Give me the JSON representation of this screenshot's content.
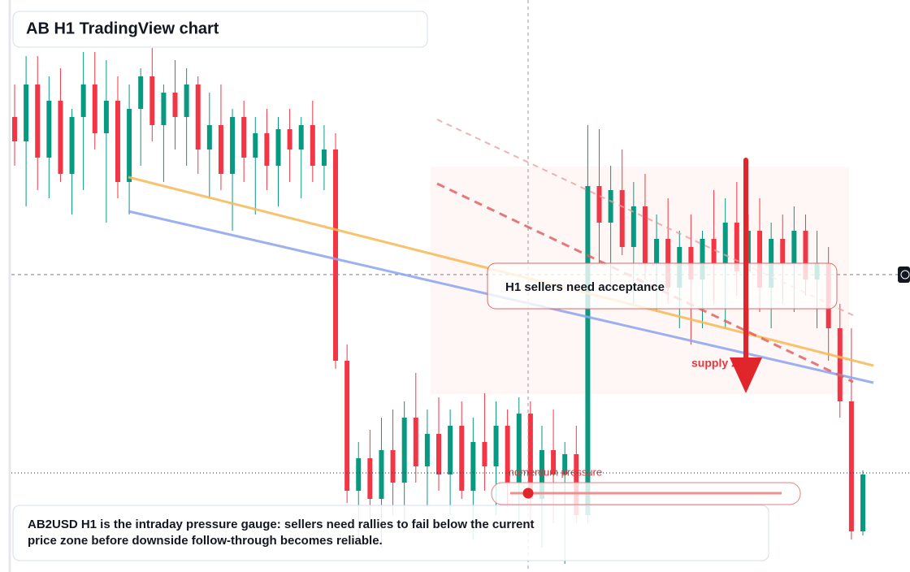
{
  "header": {
    "title": "AB H1 TradingView chart"
  },
  "chart_data": {
    "type": "candlestick",
    "ylim": [
      0,
      704
    ],
    "up_color": "#089981",
    "down_color": "#f23645",
    "open": [
      560,
      530,
      600,
      510,
      580,
      490,
      560,
      600,
      540,
      580,
      480,
      570,
      610,
      550,
      590,
      560,
      600,
      520,
      550,
      490,
      560,
      510,
      540,
      500,
      545,
      520,
      550,
      500,
      520,
      260,
      100,
      140,
      90,
      150,
      110,
      190,
      130,
      170,
      120,
      180,
      100,
      160,
      130,
      180,
      110,
      195,
      90,
      150,
      120,
      145,
      70,
      475,
      430,
      470,
      400,
      450,
      380,
      410,
      350,
      400,
      360,
      410,
      380,
      430,
      370,
      420,
      350,
      410,
      380,
      420,
      360,
      380,
      300,
      210,
      50
    ],
    "high": [
      600,
      635,
      635,
      610,
      620,
      570,
      640,
      640,
      630,
      610,
      600,
      620,
      645,
      600,
      630,
      620,
      610,
      590,
      600,
      570,
      580,
      560,
      570,
      560,
      570,
      560,
      580,
      550,
      540,
      280,
      160,
      175,
      190,
      200,
      210,
      245,
      200,
      215,
      200,
      210,
      190,
      220,
      210,
      200,
      215,
      210,
      180,
      200,
      160,
      180,
      550,
      545,
      500,
      520,
      480,
      490,
      440,
      460,
      420,
      440,
      420,
      470,
      460,
      480,
      440,
      460,
      430,
      440,
      450,
      440,
      420,
      400,
      330,
      300,
      125
    ],
    "low": [
      500,
      450,
      470,
      460,
      480,
      440,
      470,
      520,
      430,
      460,
      440,
      500,
      530,
      480,
      520,
      500,
      490,
      460,
      470,
      420,
      480,
      440,
      470,
      450,
      480,
      460,
      480,
      470,
      250,
      85,
      40,
      60,
      30,
      70,
      50,
      110,
      80,
      100,
      70,
      90,
      40,
      100,
      70,
      80,
      60,
      50,
      30,
      60,
      10,
      60,
      60,
      380,
      350,
      390,
      330,
      360,
      320,
      330,
      300,
      280,
      300,
      330,
      300,
      340,
      290,
      320,
      300,
      330,
      320,
      340,
      300,
      260,
      190,
      40,
      45
    ],
    "close": [
      530,
      600,
      510,
      580,
      490,
      560,
      600,
      540,
      580,
      480,
      570,
      610,
      550,
      590,
      560,
      600,
      520,
      550,
      490,
      560,
      510,
      540,
      500,
      545,
      520,
      550,
      500,
      520,
      260,
      100,
      140,
      90,
      150,
      110,
      190,
      130,
      170,
      120,
      180,
      100,
      160,
      130,
      180,
      110,
      195,
      90,
      150,
      120,
      145,
      70,
      475,
      430,
      470,
      400,
      450,
      380,
      410,
      350,
      400,
      360,
      410,
      380,
      430,
      370,
      420,
      350,
      410,
      380,
      420,
      360,
      380,
      300,
      210,
      50,
      120
    ]
  },
  "annotations": {
    "callout": "H1 sellers need acceptance",
    "zone": "supply zone",
    "gauge": "momentum pressure",
    "note": "AB2USD H1 is the intraday pressure gauge: sellers need rallies to fail below the current price zone before downside follow-through becomes reliable."
  }
}
